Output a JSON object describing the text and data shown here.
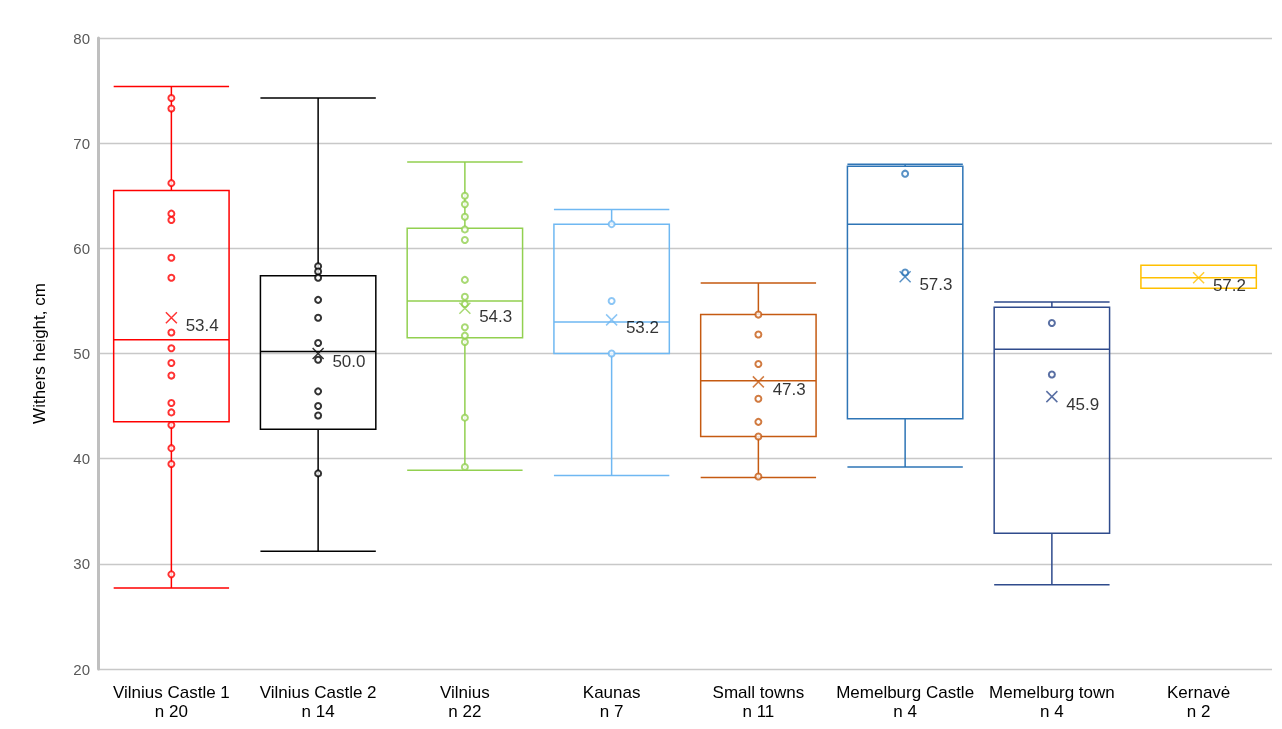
{
  "chart_data": {
    "type": "box",
    "ylabel": "Withers height, cm",
    "categories": [
      "Vilnius Castle 1\nn 20",
      "Vilnius Castle 2\nn 14",
      "Vilnius\nn 22",
      "Kaunas\nn 7",
      "Small towns\nn 11",
      "Memelburg Castle\nn 4",
      "Memelburg town\nn 4",
      "Kernavė\nn 2"
    ],
    "colors": [
      "#ff0000",
      "#000000",
      "#92d050",
      "#6fb8f2",
      "#c55a11",
      "#2e75b6",
      "#2f4b8c",
      "#ffc000"
    ],
    "boxes": [
      {
        "low": 27.7,
        "q1": 43.5,
        "median": 51.3,
        "q3": 65.5,
        "high": 75.4
      },
      {
        "low": 31.2,
        "q1": 42.8,
        "median": 50.2,
        "q3": 57.4,
        "high": 74.3
      },
      {
        "low": 38.9,
        "q1": 51.5,
        "median": 55.0,
        "q3": 61.9,
        "high": 68.2
      },
      {
        "low": 38.4,
        "q1": 50.0,
        "median": 53.0,
        "q3": 62.3,
        "high": 63.7
      },
      {
        "low": 38.2,
        "q1": 42.1,
        "median": 47.4,
        "q3": 53.7,
        "high": 56.7
      },
      {
        "low": 39.2,
        "q1": 43.8,
        "median": 62.3,
        "q3": 67.8,
        "high": 68.0
      },
      {
        "low": 28.0,
        "q1": 32.9,
        "median": 50.4,
        "q3": 54.4,
        "high": 54.9
      },
      {
        "low": 56.2,
        "q1": 56.2,
        "median": 57.2,
        "q3": 58.4,
        "high": 58.4
      }
    ],
    "series": [
      {
        "type": "scatter",
        "color": "#ff0000",
        "x": [
          "Vilnius Castle 1\nn 20",
          "Vilnius Castle 1\nn 20",
          "Vilnius Castle 1\nn 20",
          "Vilnius Castle 1\nn 20",
          "Vilnius Castle 1\nn 20",
          "Vilnius Castle 1\nn 20",
          "Vilnius Castle 1\nn 20",
          "Vilnius Castle 1\nn 20",
          "Vilnius Castle 1\nn 20",
          "Vilnius Castle 1\nn 20",
          "Vilnius Castle 1\nn 20",
          "Vilnius Castle 1\nn 20",
          "Vilnius Castle 1\nn 20",
          "Vilnius Castle 1\nn 20",
          "Vilnius Castle 1\nn 20",
          "Vilnius Castle 1\nn 20",
          "Vilnius Castle 1\nn 20"
        ],
        "values": [
          74.3,
          73.3,
          66.2,
          63.3,
          62.7,
          59.1,
          57.2,
          52.0,
          50.5,
          49.1,
          47.9,
          45.3,
          44.4,
          43.2,
          41.0,
          39.5,
          29.0
        ]
      },
      {
        "type": "scatter",
        "color": "#000000",
        "x": [
          "Vilnius Castle 2\nn 14",
          "Vilnius Castle 2\nn 14",
          "Vilnius Castle 2\nn 14",
          "Vilnius Castle 2\nn 14",
          "Vilnius Castle 2\nn 14",
          "Vilnius Castle 2\nn 14",
          "Vilnius Castle 2\nn 14",
          "Vilnius Castle 2\nn 14",
          "Vilnius Castle 2\nn 14",
          "Vilnius Castle 2\nn 14",
          "Vilnius Castle 2\nn 14"
        ],
        "values": [
          58.3,
          57.8,
          57.2,
          55.1,
          53.4,
          51.0,
          49.4,
          46.4,
          45.0,
          44.1,
          38.6
        ]
      },
      {
        "type": "scatter",
        "color": "#92d050",
        "x": [
          "Vilnius\nn 22",
          "Vilnius\nn 22",
          "Vilnius\nn 22",
          "Vilnius\nn 22",
          "Vilnius\nn 22",
          "Vilnius\nn 22",
          "Vilnius\nn 22",
          "Vilnius\nn 22",
          "Vilnius\nn 22",
          "Vilnius\nn 22",
          "Vilnius\nn 22",
          "Vilnius\nn 22",
          "Vilnius\nn 22"
        ],
        "values": [
          65.0,
          64.2,
          63.0,
          61.8,
          60.8,
          57.0,
          55.4,
          54.7,
          52.5,
          51.7,
          51.1,
          43.9,
          39.2
        ]
      },
      {
        "type": "scatter",
        "color": "#6fb8f2",
        "x": [
          "Kaunas\nn 7",
          "Kaunas\nn 7",
          "Kaunas\nn 7"
        ],
        "values": [
          62.3,
          55.0,
          50.0
        ]
      },
      {
        "type": "scatter",
        "color": "#c55a11",
        "x": [
          "Small towns\nn 11",
          "Small towns\nn 11",
          "Small towns\nn 11",
          "Small towns\nn 11",
          "Small towns\nn 11",
          "Small towns\nn 11",
          "Small towns\nn 11"
        ],
        "values": [
          53.7,
          51.8,
          49.0,
          45.7,
          43.5,
          42.1,
          38.3
        ]
      },
      {
        "type": "scatter",
        "color": "#2e75b6",
        "x": [
          "Memelburg Castle\nn 4",
          "Memelburg Castle\nn 4"
        ],
        "values": [
          67.1,
          57.7
        ]
      },
      {
        "type": "scatter",
        "color": "#2f4b8c",
        "x": [
          "Memelburg town\nn 4",
          "Memelburg town\nn 4"
        ],
        "values": [
          52.9,
          48.0
        ]
      },
      {
        "type": "scatter",
        "marker": "cross",
        "colors": [
          "#ff0000",
          "#000000",
          "#92d050",
          "#6fb8f2",
          "#c55a11",
          "#2e75b6",
          "#2f4b8c",
          "#ffc000"
        ],
        "x": [
          "Vilnius Castle 1\nn 20",
          "Vilnius Castle 2\nn 14",
          "Vilnius\nn 22",
          "Kaunas\nn 7",
          "Small towns\nn 11",
          "Memelburg Castle\nn 4",
          "Memelburg town\nn 4",
          "Kernavė\nn 2"
        ],
        "values": [
          53.4,
          50.0,
          54.3,
          53.2,
          47.3,
          57.3,
          45.9,
          57.2
        ],
        "value_labels": [
          "53.4",
          "50.0",
          "54.3",
          "53.2",
          "47.3",
          "57.3",
          "45.9",
          "57.2"
        ]
      }
    ],
    "ylim": [
      20,
      80
    ],
    "yticks": [
      20,
      30,
      40,
      50,
      60,
      70,
      80
    ],
    "grid": "y",
    "marker": "circle"
  }
}
